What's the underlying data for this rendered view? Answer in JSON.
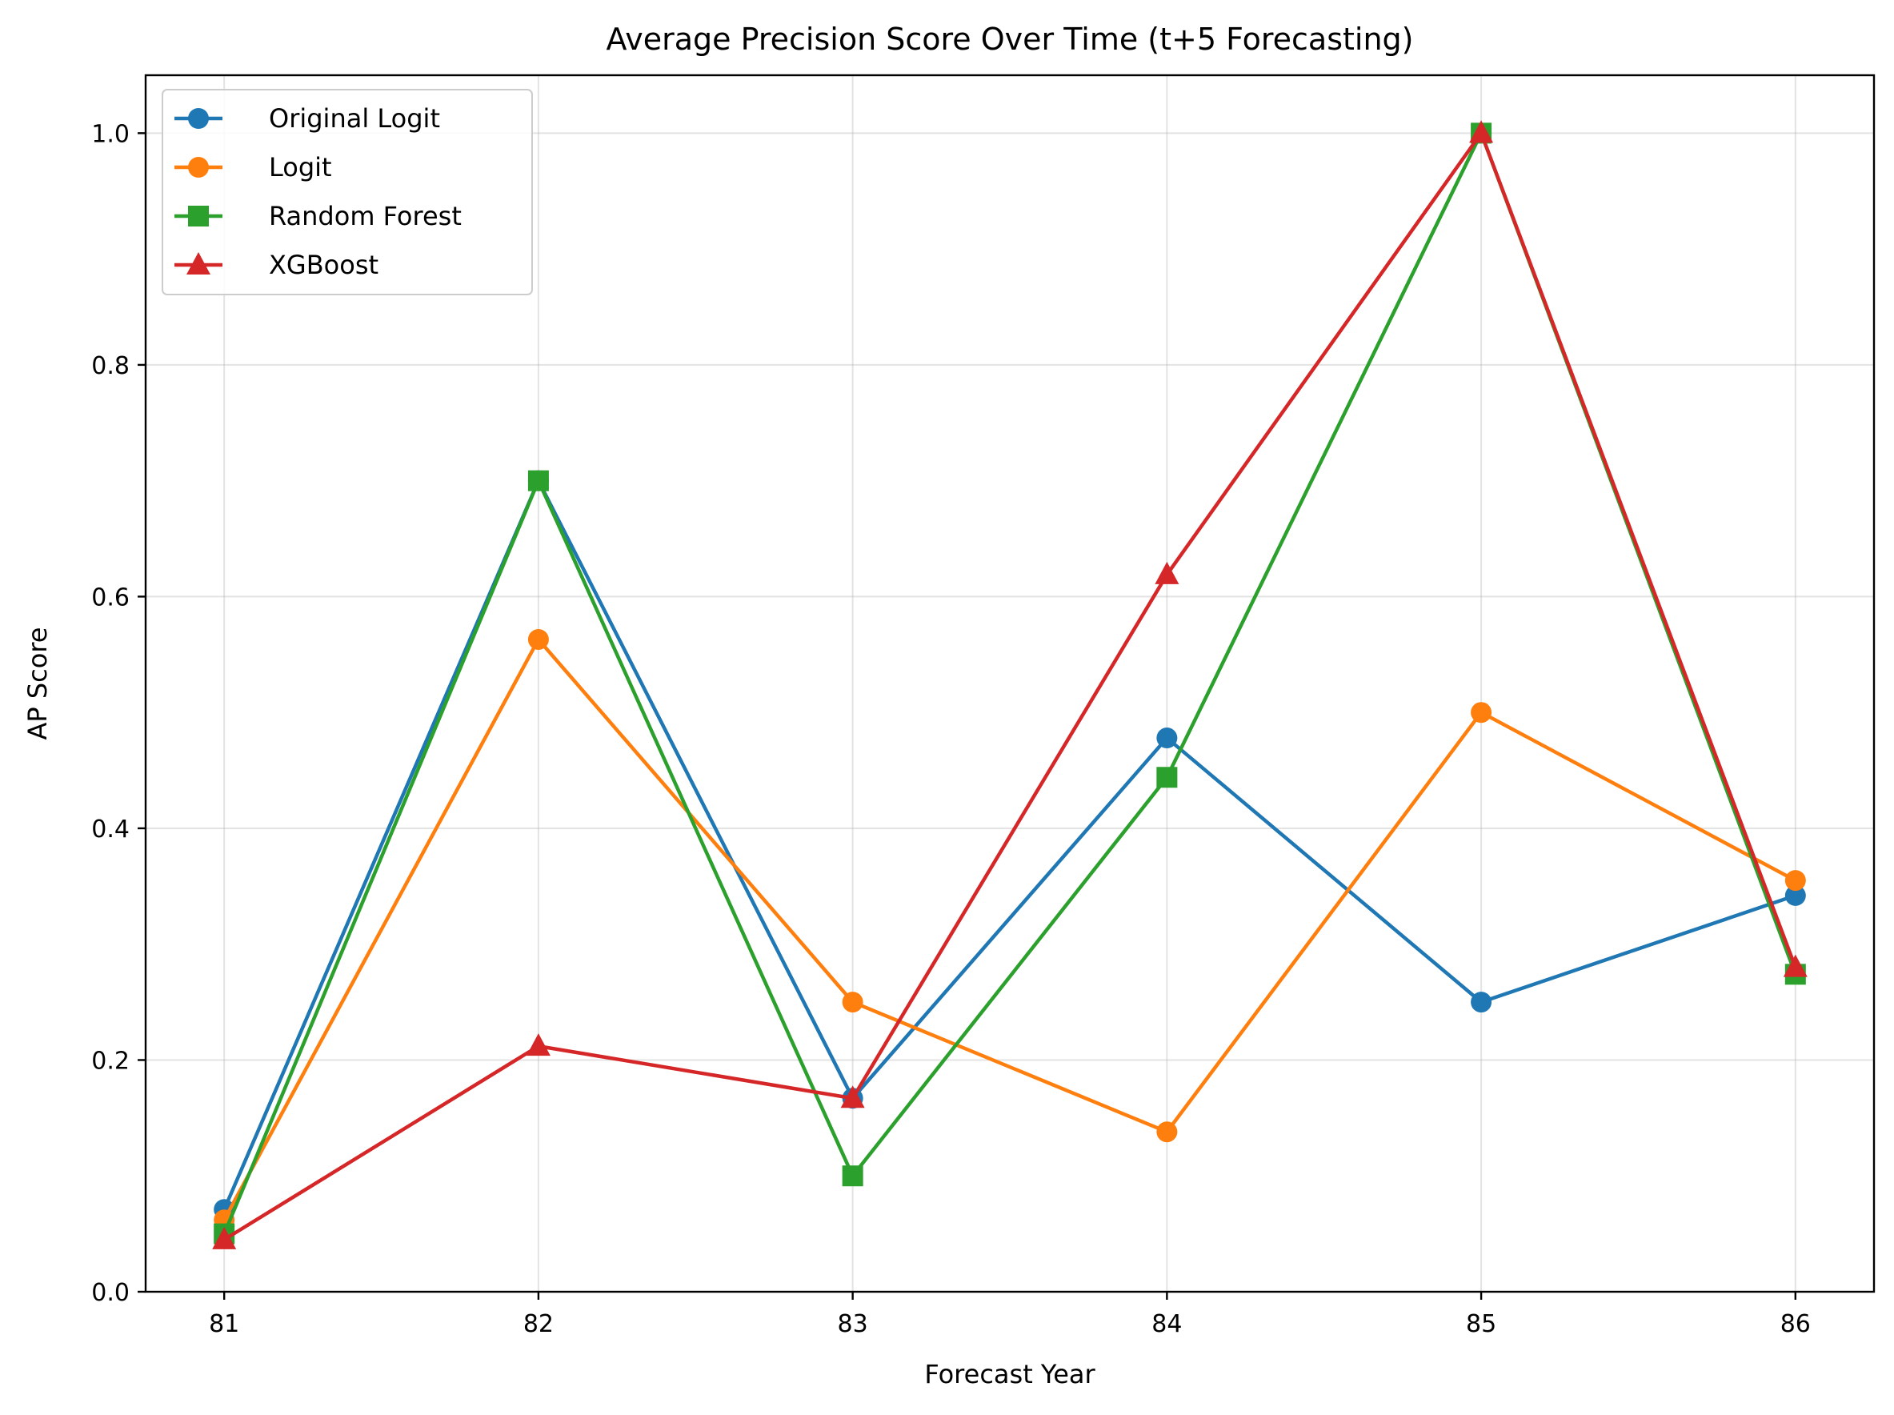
{
  "chart_data": {
    "type": "line",
    "title": "Average Precision Score Over Time (t+5 Forecasting)",
    "xlabel": "Forecast Year",
    "ylabel": "AP Score",
    "x": [
      81,
      82,
      83,
      84,
      85,
      86
    ],
    "xticks": [
      "81",
      "82",
      "83",
      "84",
      "85",
      "86"
    ],
    "yticks": [
      "0.0",
      "0.2",
      "0.4",
      "0.6",
      "0.8",
      "1.0"
    ],
    "xlim": [
      80.75,
      86.25
    ],
    "ylim": [
      0.0,
      1.05
    ],
    "grid": true,
    "legend_position": "upper-left",
    "series": [
      {
        "name": "Original Logit",
        "color": "#1f77b4",
        "marker": "circle",
        "values": [
          0.071,
          0.7,
          0.167,
          0.478,
          0.25,
          0.342
        ]
      },
      {
        "name": "Logit",
        "color": "#ff7f0e",
        "marker": "circle",
        "values": [
          0.062,
          0.563,
          0.25,
          0.138,
          0.5,
          0.355
        ]
      },
      {
        "name": "Random Forest",
        "color": "#2ca02c",
        "marker": "square",
        "values": [
          0.05,
          0.7,
          0.1,
          0.444,
          1.0,
          0.274
        ]
      },
      {
        "name": "XGBoost",
        "color": "#d62728",
        "marker": "triangle",
        "values": [
          0.045,
          0.212,
          0.167,
          0.619,
          1.0,
          0.28
        ]
      }
    ]
  }
}
